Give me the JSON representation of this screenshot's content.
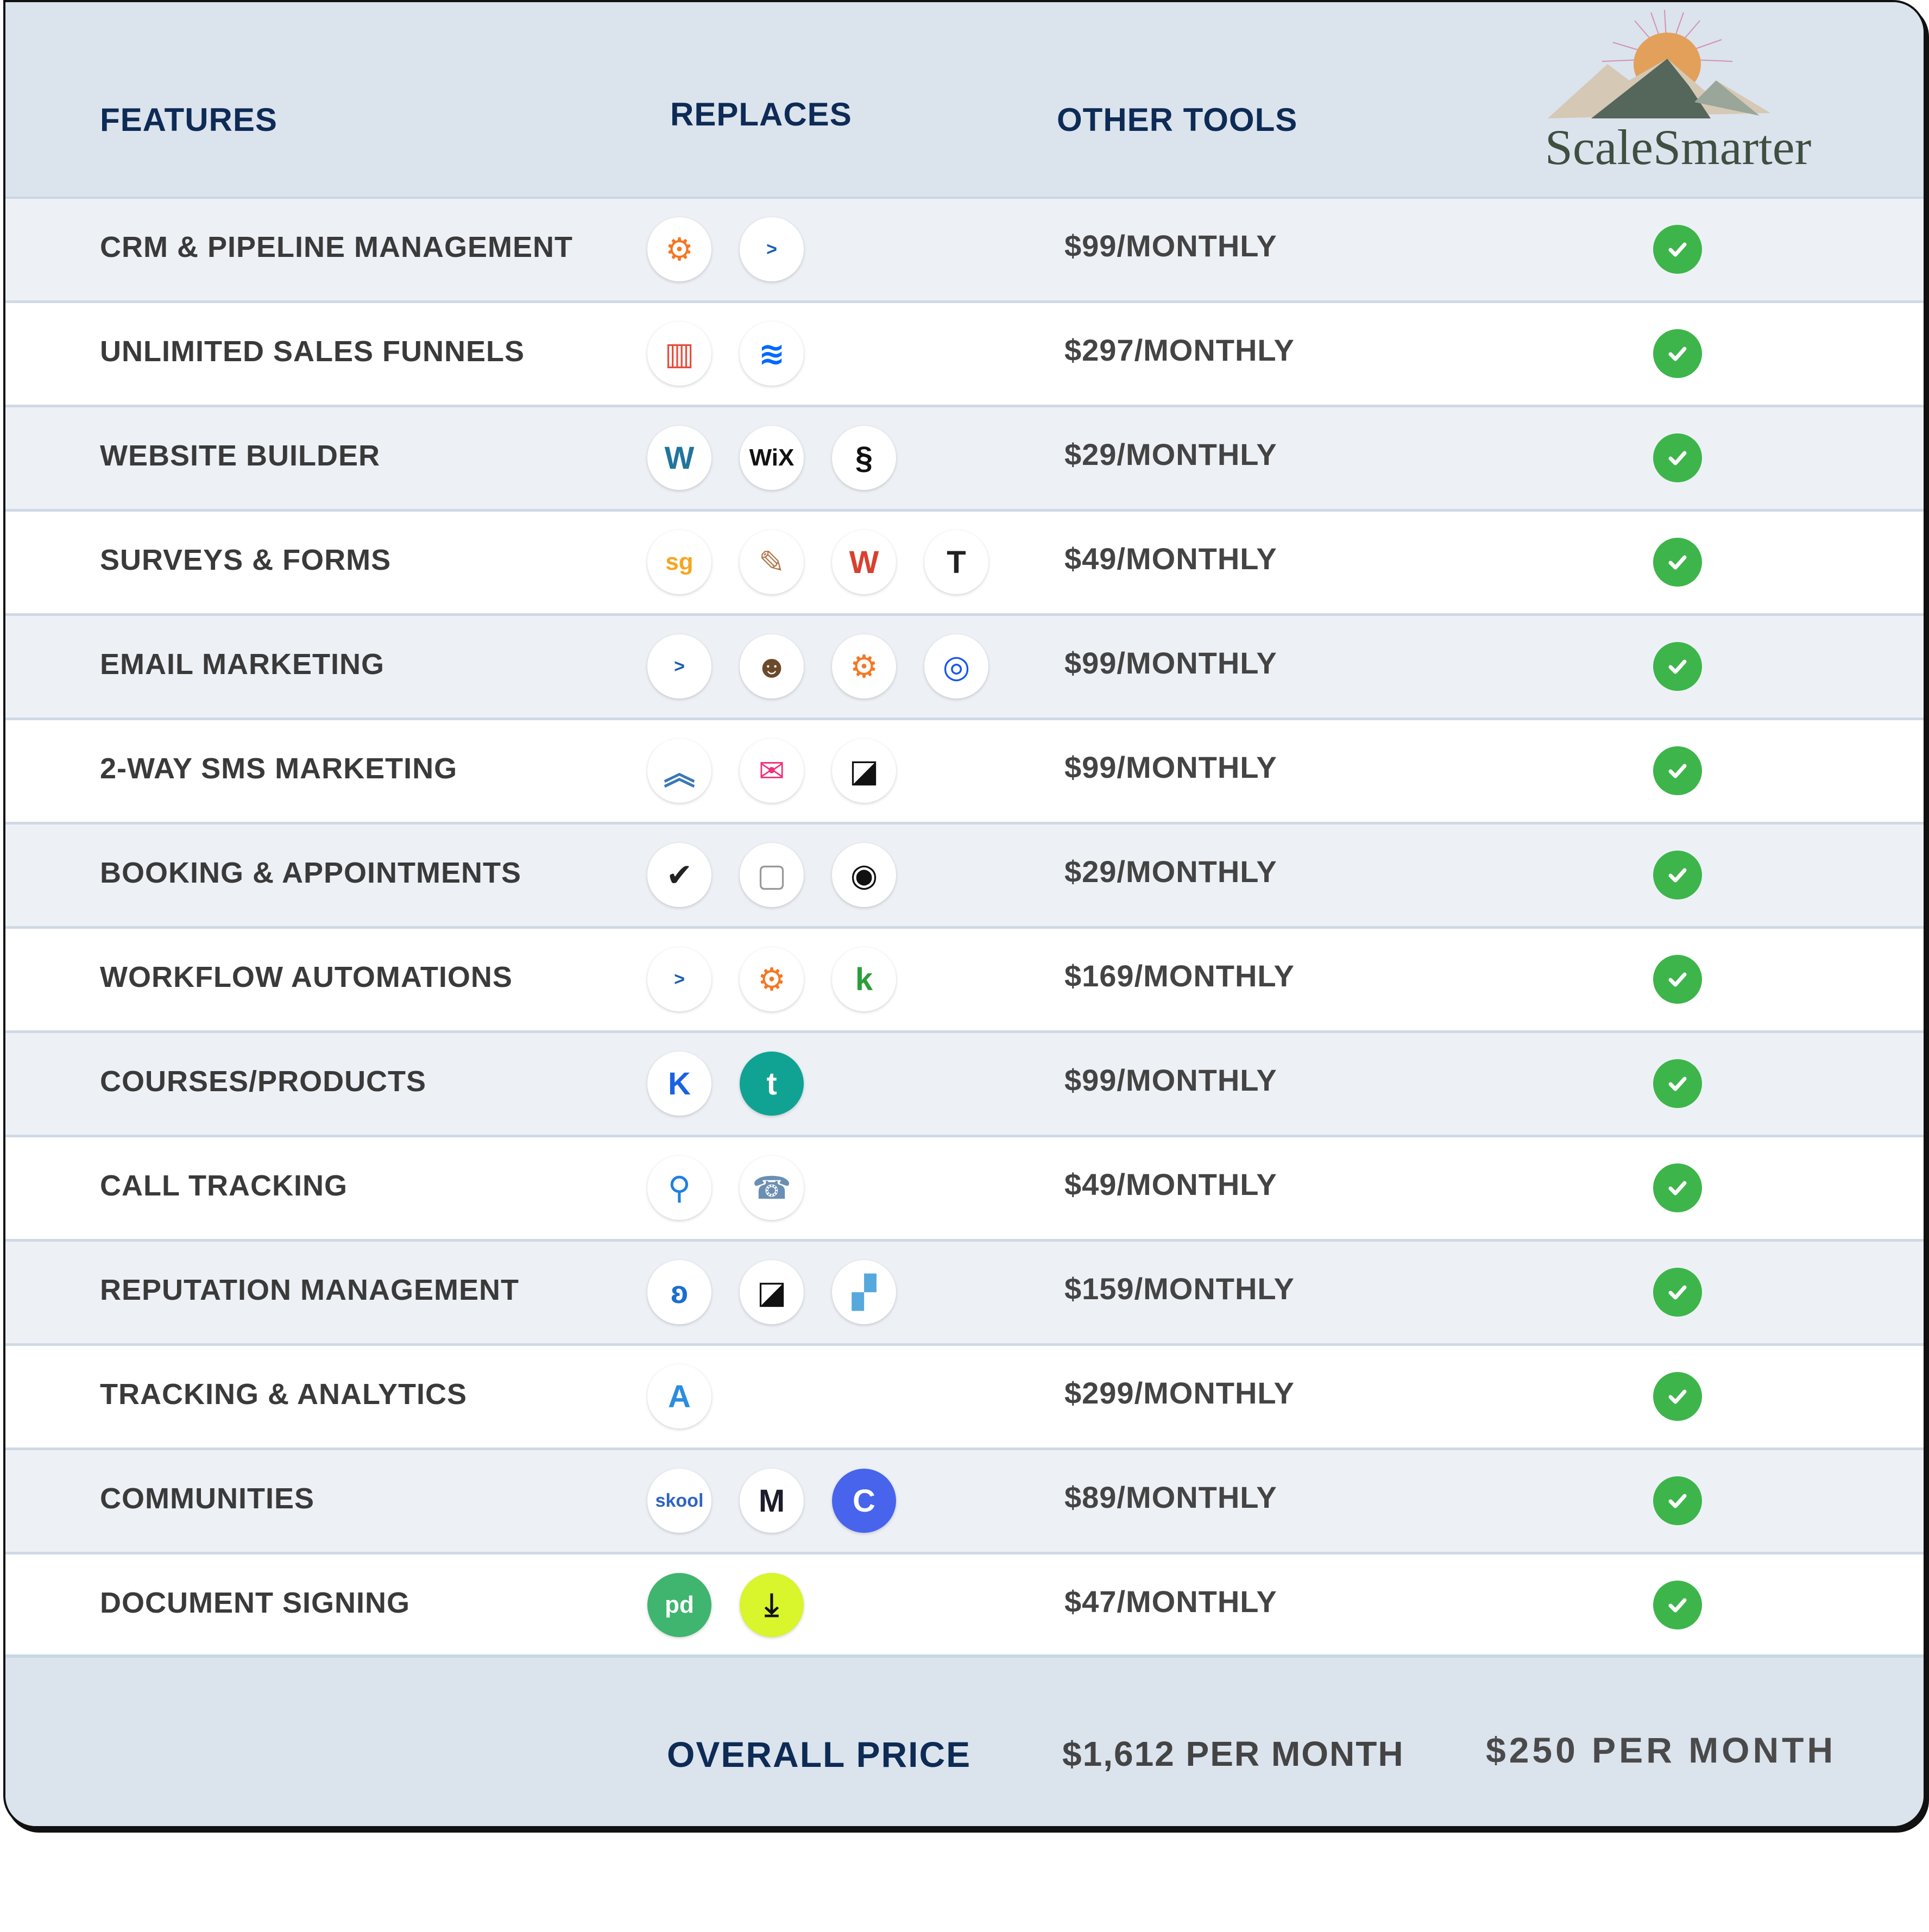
{
  "header": {
    "features": "FEATURES",
    "replaces": "REPLACES",
    "other_tools": "OTHER TOOLS",
    "brand": "ScaleSmarter"
  },
  "colors": {
    "navy": "#0d2b55",
    "text": "#3a3a3a",
    "check": "#3db54a",
    "header_bg": "#dbe3ed",
    "row_alt": "#edf1f6"
  },
  "rows": [
    {
      "feature": "CRM & PIPELINE MANAGEMENT",
      "icons": [
        "hubspot",
        "activecampaign"
      ],
      "price": "$99/MONTHLY",
      "included": true
    },
    {
      "feature": "UNLIMITED SALES FUNNELS",
      "icons": [
        "clickfunnels",
        "leadpages"
      ],
      "price": "$297/MONTHLY",
      "included": true
    },
    {
      "feature": "WEBSITE BUILDER",
      "icons": [
        "wordpress",
        "wix",
        "squarespace"
      ],
      "price": "$29/MONTHLY",
      "included": true
    },
    {
      "feature": "SURVEYS & FORMS",
      "icons": [
        "surveygizmo",
        "jotform",
        "wufoo",
        "typeform"
      ],
      "price": "$49/MONTHLY",
      "included": true
    },
    {
      "feature": "EMAIL MARKETING",
      "icons": [
        "activecampaign",
        "mailchimp",
        "hubspot",
        "constant-contact"
      ],
      "price": "$99/MONTHLY",
      "included": true
    },
    {
      "feature": "2-WAY SMS MARKETING",
      "icons": [
        "textline",
        "simpletexting",
        "podium"
      ],
      "price": "$99/MONTHLY",
      "included": true
    },
    {
      "feature": "BOOKING & APPOINTMENTS",
      "icons": [
        "acuity",
        "calendar",
        "oncehub"
      ],
      "price": "$29/MONTHLY",
      "included": true
    },
    {
      "feature": "WORKFLOW AUTOMATIONS",
      "icons": [
        "activecampaign",
        "hubspot",
        "keap"
      ],
      "price": "$169/MONTHLY",
      "included": true
    },
    {
      "feature": "COURSES/PRODUCTS",
      "icons": [
        "kajabi",
        "teachable"
      ],
      "price": "$99/MONTHLY",
      "included": true
    },
    {
      "feature": "CALL TRACKING",
      "icons": [
        "callrail",
        "phone"
      ],
      "price": "$49/MONTHLY",
      "included": true
    },
    {
      "feature": "REPUTATION MANAGEMENT",
      "icons": [
        "birdeye",
        "podium",
        "gradeus"
      ],
      "price": "$159/MONTHLY",
      "included": true
    },
    {
      "feature": "TRACKING & ANALYTICS",
      "icons": [
        "analytics"
      ],
      "price": "$299/MONTHLY",
      "included": true
    },
    {
      "feature": "COMMUNITIES",
      "icons": [
        "skool",
        "mighty-networks",
        "circle"
      ],
      "price": "$89/MONTHLY",
      "included": true
    },
    {
      "feature": "DOCUMENT SIGNING",
      "icons": [
        "pandadoc",
        "docusign"
      ],
      "price": "$47/MONTHLY",
      "included": true
    }
  ],
  "footer": {
    "label": "OVERALL PRICE",
    "other_total": "$1,612 PER MONTH",
    "brand_total": "$250 PER MONTH"
  }
}
